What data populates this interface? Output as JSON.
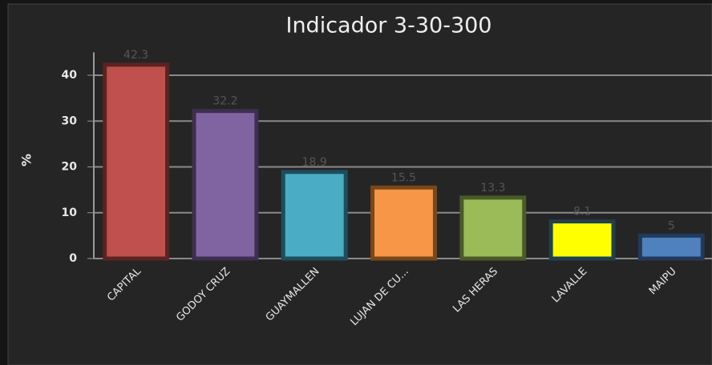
{
  "chart_data": {
    "type": "bar",
    "title": "Indicador 3-30-300",
    "y_label": "%",
    "categories": [
      "CAPITAL",
      "GODOY CRUZ",
      "GUAYMALLEN",
      "LUJAN DE CU...",
      "LAS HERAS",
      "LAVALLE",
      "MAIPU"
    ],
    "values": [
      42.3,
      32.2,
      18.9,
      15.5,
      13.3,
      8.1,
      5
    ],
    "colors": [
      "#c0504d",
      "#8064a2",
      "#4bacc6",
      "#f79646",
      "#9bbb59",
      "#ffff00",
      "#4f81bd"
    ],
    "border_colors": [
      "#5b2321",
      "#3d2f50",
      "#1f4d5a",
      "#7a4719",
      "#4b5a29",
      "#1f4050",
      "#22395a"
    ],
    "ylim": [
      0,
      45
    ],
    "yticks": [
      0,
      10,
      20,
      30,
      40
    ],
    "grid": true
  }
}
